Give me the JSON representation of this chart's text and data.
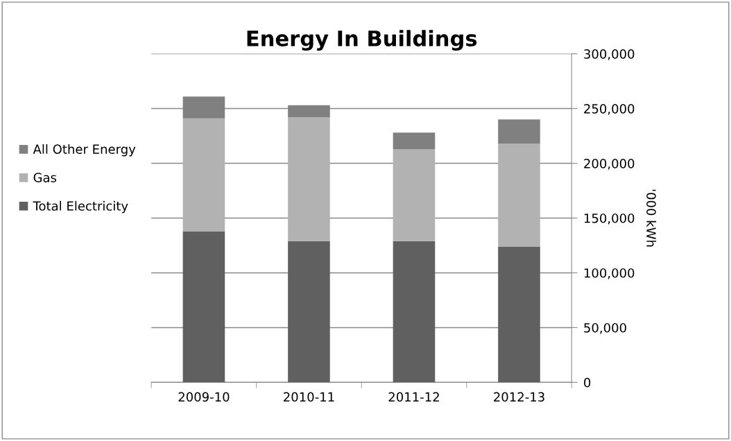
{
  "chart_data": {
    "type": "bar",
    "stacked": true,
    "title": "Energy In Buildings",
    "ylabel": "'000 kWh",
    "categories": [
      "2009-10",
      "2010-11",
      "2011-12",
      "2012-13"
    ],
    "series": [
      {
        "name": "Total Electricity",
        "color": "#606060",
        "values": [
          138000,
          129000,
          129000,
          124000
        ]
      },
      {
        "name": "Gas",
        "color": "#b2b2b2",
        "values": [
          103000,
          113000,
          84000,
          94000
        ]
      },
      {
        "name": "All Other Energy",
        "color": "#808080",
        "values": [
          20000,
          11000,
          15000,
          22000
        ]
      }
    ],
    "ylim": [
      0,
      300000
    ],
    "yticks": [
      {
        "value": 0,
        "label": "0"
      },
      {
        "value": 50000,
        "label": "50,000"
      },
      {
        "value": 100000,
        "label": "100,000"
      },
      {
        "value": 150000,
        "label": "150,000"
      },
      {
        "value": 200000,
        "label": "200,000"
      },
      {
        "value": 250000,
        "label": "250,000"
      },
      {
        "value": 300000,
        "label": "300,000"
      }
    ],
    "grid": "y",
    "legend": "left"
  }
}
